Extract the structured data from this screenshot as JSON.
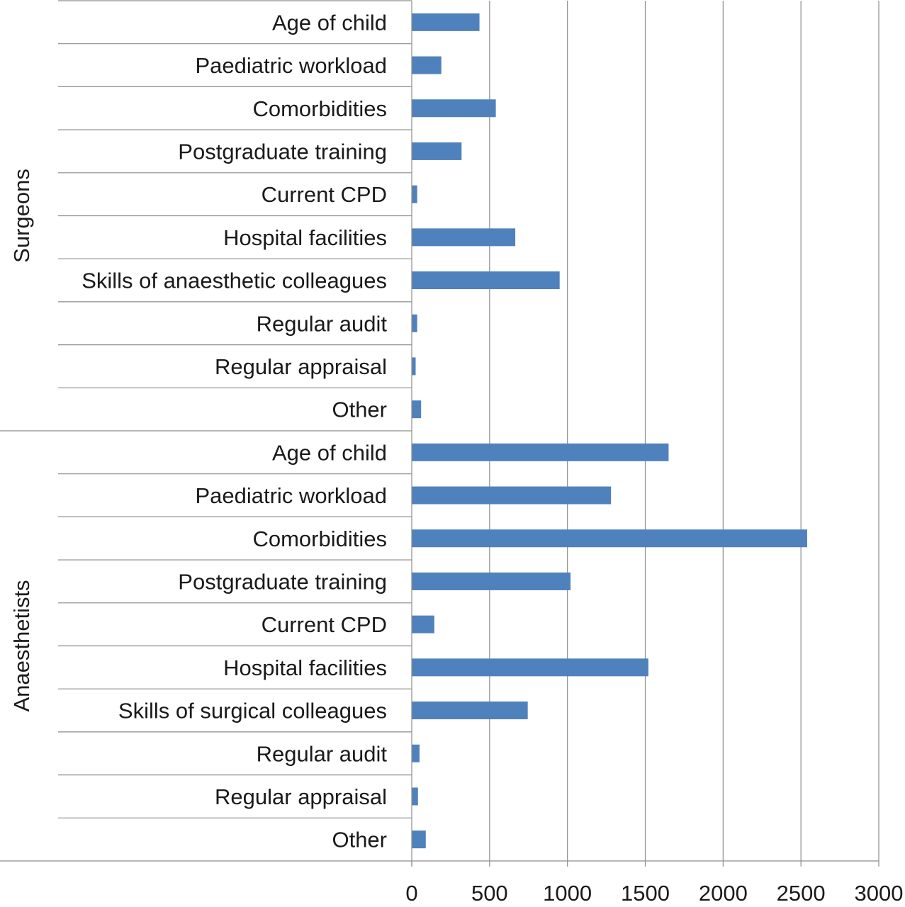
{
  "chart_data": {
    "type": "bar",
    "orientation": "horizontal",
    "title": "",
    "xlabel": "",
    "ylabel": "",
    "xlim": [
      0,
      3000
    ],
    "x_ticks": [
      "0",
      "500",
      "1000",
      "1500",
      "2000",
      "2500",
      "3000"
    ],
    "grid": true,
    "legend": "none",
    "bar_color": "#4f81bd",
    "groups": [
      {
        "name": "Surgeons",
        "categories": [
          "Age of child",
          "Paediatric workload",
          "Comorbidities",
          "Postgraduate training",
          "Current CPD",
          "Hospital facilities",
          "Skills of anaesthetic colleagues",
          "Regular audit",
          "Regular appraisal",
          "Other"
        ],
        "values": [
          435,
          190,
          540,
          320,
          35,
          665,
          950,
          35,
          25,
          60
        ]
      },
      {
        "name": "Anaesthetists",
        "categories": [
          "Age of child",
          "Paediatric workload",
          "Comorbidities",
          "Postgraduate training",
          "Current CPD",
          "Hospital facilities",
          "Skills of surgical colleagues",
          "Regular audit",
          "Regular appraisal",
          "Other"
        ],
        "values": [
          1650,
          1280,
          2540,
          1020,
          145,
          1520,
          745,
          50,
          40,
          90
        ]
      }
    ]
  }
}
